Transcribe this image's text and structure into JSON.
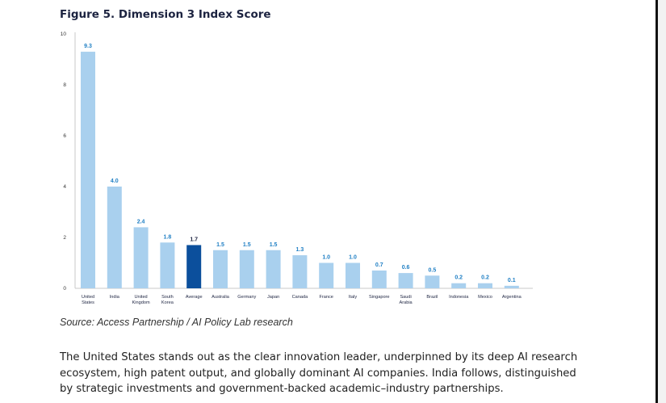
{
  "figure": {
    "title": "Figure 5. Dimension 3 Index Score",
    "source": "Source: Access Partnership / AI Policy Lab research",
    "paragraph": "The United States stands out as the clear innovation leader, underpinned by its deep AI research ecosystem, high patent output, and globally dominant AI companies. India follows, distinguished by strategic investments and government-backed academic–industry partnerships."
  },
  "chart_data": {
    "type": "bar",
    "title": "Figure 5. Dimension 3 Index Score",
    "xlabel": "",
    "ylabel": "",
    "ylim": [
      0,
      10
    ],
    "yticks": [
      0,
      2,
      4,
      6,
      8,
      10
    ],
    "grid": false,
    "categories": [
      [
        "United",
        "States"
      ],
      [
        "India"
      ],
      [
        "United",
        "Kingdom"
      ],
      [
        "South",
        "Korea"
      ],
      [
        "Average"
      ],
      [
        "Australia"
      ],
      [
        "Germany"
      ],
      [
        "Japan"
      ],
      [
        "Canada"
      ],
      [
        "France"
      ],
      [
        "Italy"
      ],
      [
        "Singapore"
      ],
      [
        "Saudi",
        "Arabia"
      ],
      [
        "Brazil"
      ],
      [
        "Indonesia"
      ],
      [
        "Mexico"
      ],
      [
        "Argentina"
      ]
    ],
    "values": [
      9.3,
      4.0,
      2.4,
      1.8,
      1.7,
      1.5,
      1.5,
      1.5,
      1.3,
      1.0,
      1.0,
      0.7,
      0.6,
      0.5,
      0.2,
      0.2,
      0.1
    ],
    "labels": [
      "9.3",
      "4.0",
      "2.4",
      "1.8",
      "1.7",
      "1.5",
      "1.5",
      "1.5",
      "1.3",
      "1.0",
      "1.0",
      "0.7",
      "0.6",
      "0.5",
      "0.2",
      "0.2",
      "0.1"
    ],
    "bar_color": "#a9d0ee",
    "highlight_color": "#0b4f9c",
    "highlight_index": 4,
    "value_label_color": "#1f7fc4",
    "highlight_label_color": "#1c2340"
  }
}
